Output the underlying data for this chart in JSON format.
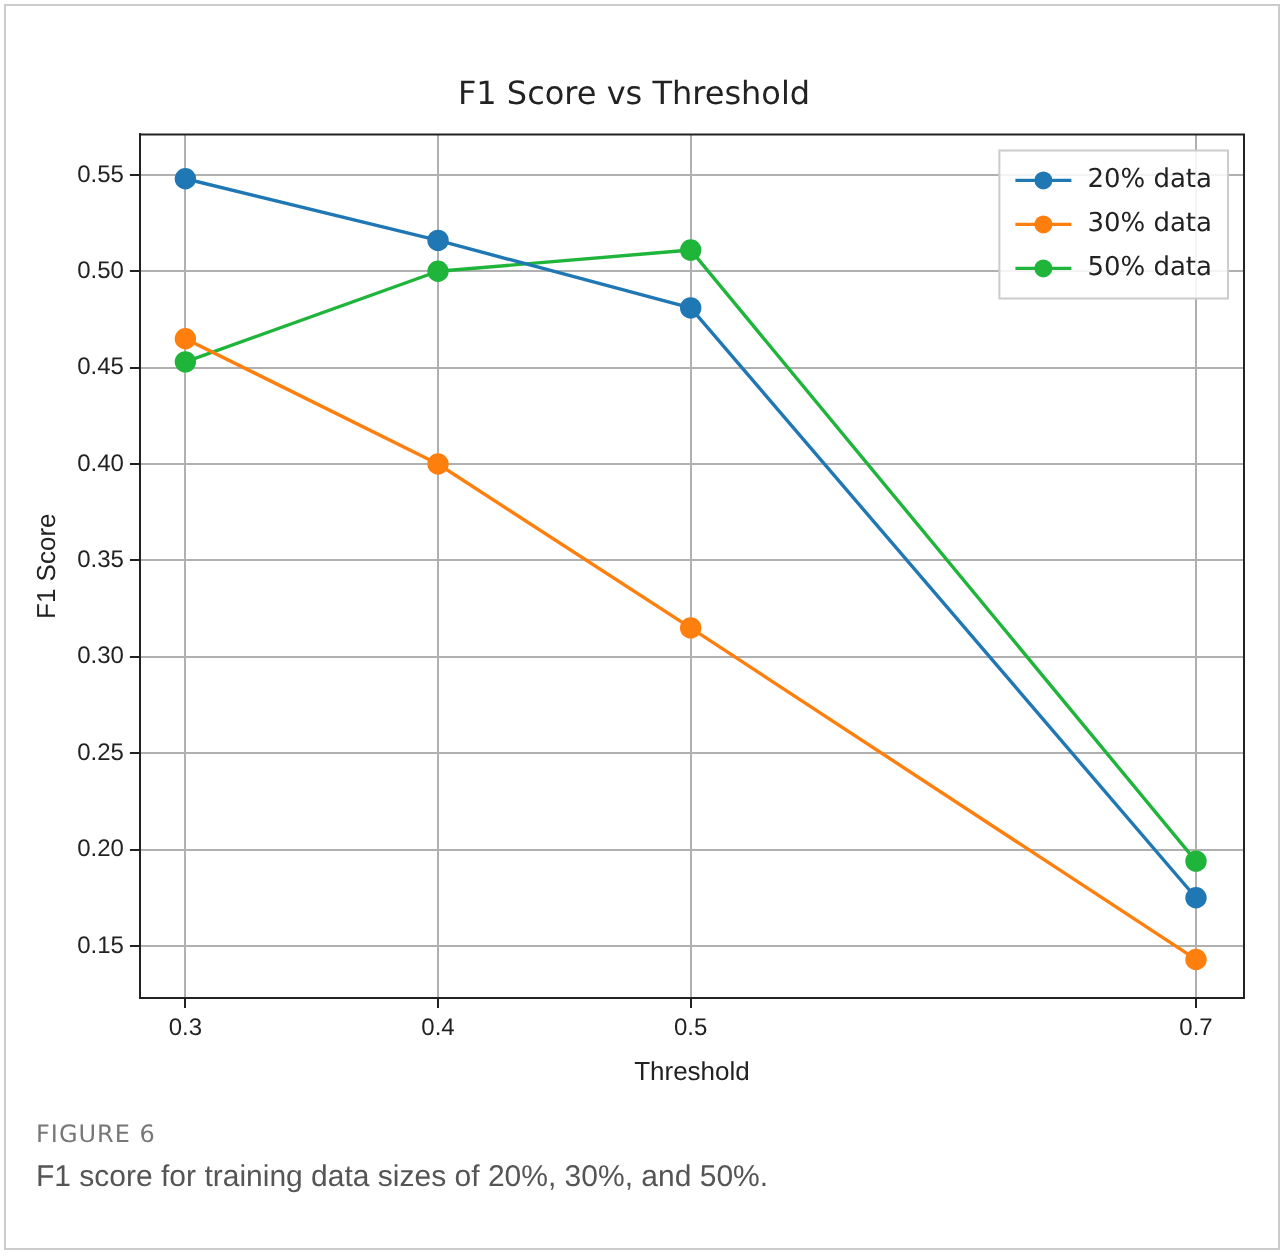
{
  "chart_data": {
    "type": "line",
    "title": "F1 Score vs Threshold",
    "xlabel": "Threshold",
    "ylabel": "F1 Score",
    "x": [
      0.3,
      0.4,
      0.5,
      0.7
    ],
    "series": [
      {
        "name": "20% data",
        "color": "#1f77b4",
        "values": [
          0.548,
          0.516,
          0.481,
          0.175
        ]
      },
      {
        "name": "30% data",
        "color": "#ff7f0e",
        "values": [
          0.465,
          0.4,
          0.315,
          0.143
        ]
      },
      {
        "name": "50% data",
        "color": "#1fb43a",
        "values": [
          0.453,
          0.5,
          0.511,
          0.194
        ]
      }
    ],
    "xlim": [
      0.282,
      0.719
    ],
    "xticks": [
      0.3,
      0.4,
      0.5,
      0.7
    ],
    "ylim": [
      0.123,
      0.571
    ],
    "yticks": [
      0.15,
      {
        "value": 0.2,
        "label": "0.20"
      },
      0.25,
      {
        "value": 0.3,
        "label": "0.30"
      },
      0.35,
      {
        "value": 0.4,
        "label": "0.40"
      },
      0.45,
      {
        "value": 0.5,
        "label": "0.50"
      },
      0.55
    ],
    "grid": true,
    "legend": "top right",
    "marker": "circle",
    "line_style": "solid",
    "annotations": [
      "FIGURE 6",
      "F1 score for training data sizes of 20%, 30%, and 50%."
    ]
  }
}
